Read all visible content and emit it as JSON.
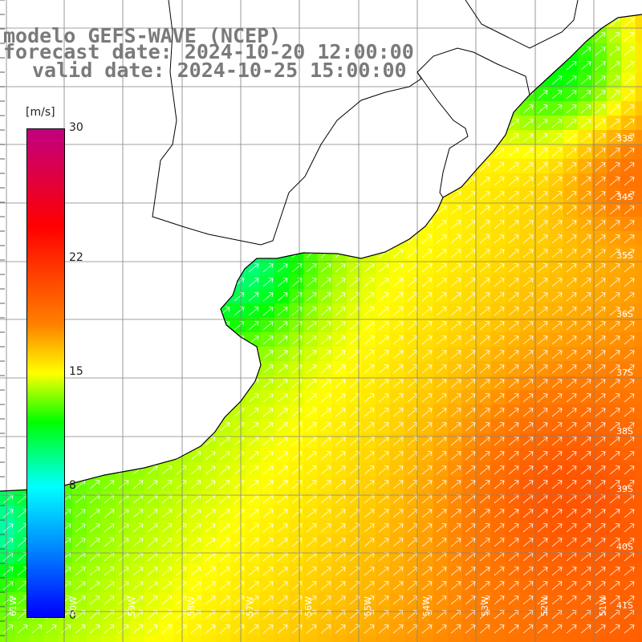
{
  "title": {
    "line1": "modelo GEFS-WAVE (NCEP)",
    "line2": "forecast date: 2024-10-20 12:00:00",
    "line3": "valid date: 2024-10-25 15:00:00"
  },
  "colorbar": {
    "unit": "[m/s]",
    "ticks": [
      "30",
      "22",
      "15",
      "8",
      "0"
    ],
    "min": 0,
    "max": 30,
    "stops": [
      {
        "value": 0,
        "color": "#0000ff"
      },
      {
        "value": 8,
        "color": "#00ffff"
      },
      {
        "value": 12,
        "color": "#00ff00"
      },
      {
        "value": 15,
        "color": "#ffff00"
      },
      {
        "value": 18,
        "color": "#ff8000"
      },
      {
        "value": 24,
        "color": "#ff0000"
      },
      {
        "value": 30,
        "color": "#c00080"
      }
    ]
  },
  "lat_labels": [
    "33S",
    "34S",
    "35S",
    "36S",
    "37S",
    "38S",
    "39S",
    "40S",
    "41S"
  ],
  "lon_labels": [
    "61W",
    "60W",
    "59W",
    "58W",
    "57W",
    "56W",
    "55W",
    "54W",
    "53W",
    "52W",
    "51W"
  ],
  "wind_direction": "northeast",
  "land_color": "#ffffff",
  "grid_color": "#808080",
  "coast_color": "#000000"
}
